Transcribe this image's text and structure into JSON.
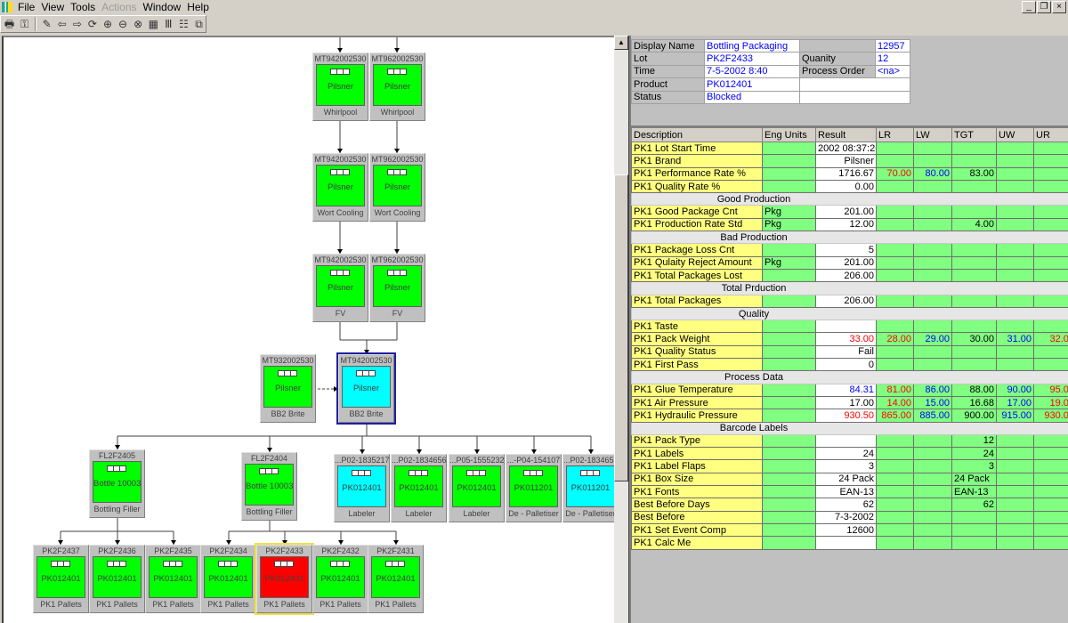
{
  "menubar": {
    "items": [
      {
        "label": "File",
        "enabled": true
      },
      {
        "label": "View",
        "enabled": true
      },
      {
        "label": "Tools",
        "enabled": true
      },
      {
        "label": "Actions",
        "enabled": false
      },
      {
        "label": "Window",
        "enabled": true
      },
      {
        "label": "Help",
        "enabled": true
      }
    ],
    "window_buttons": [
      "_",
      "❐",
      "×"
    ]
  },
  "toolbar": {
    "icons": [
      "print-icon",
      "properties-icon",
      "|",
      "edit-pencil-icon",
      "back-arrow-icon",
      "forward-arrow-icon",
      "refresh-icon",
      "zoom-in-icon",
      "zoom-out-icon",
      "zoom-reset-icon",
      "fit-icon",
      "columns-icon",
      "grid-icon",
      "genealogy-icon"
    ],
    "glyphs": [
      "🖶",
      "⚿",
      "",
      "✎",
      "⇦",
      "⇨",
      "⟳",
      "⊕",
      "⊖",
      "⊗",
      "▦",
      "Ⅲ",
      "☷",
      "⧉"
    ]
  },
  "diagram": {
    "colors": {
      "green": "#00ff00",
      "cyan": "#00ffff",
      "red": "#ff0000"
    },
    "nodes": [
      {
        "id": "MT942002530",
        "label": "Pilsner",
        "unit": "Whirlpool",
        "color": "green"
      },
      {
        "id": "MT962002530",
        "label": "Pilsner",
        "unit": "Whirlpool",
        "color": "green"
      },
      {
        "id": "MT942002530",
        "label": "Pilsner",
        "unit": "Wort Cooling",
        "color": "green"
      },
      {
        "id": "MT962002530",
        "label": "Pilsner",
        "unit": "Wort Cooling",
        "color": "green"
      },
      {
        "id": "MT942002530",
        "label": "Pilsner",
        "unit": "FV",
        "color": "green"
      },
      {
        "id": "MT962002530",
        "label": "Pilsner",
        "unit": "FV",
        "color": "green"
      },
      {
        "id": "MT932002530",
        "label": "Pilsner",
        "unit": "BB2 Brite",
        "color": "green"
      },
      {
        "id": "MT942002530",
        "label": "Pilsner",
        "unit": "BB2 Brite",
        "color": "cyan",
        "selected": "blue"
      },
      {
        "id": "FL2F2405",
        "label": "Bottle 10003",
        "unit": "Bottling Filler",
        "color": "green"
      },
      {
        "id": "FL2F2404",
        "label": "Bottle 10003",
        "unit": "Bottling Filler",
        "color": "green"
      },
      {
        "id": "...P02-1835217",
        "label": "PK012401",
        "unit": "Labeler",
        "color": "cyan"
      },
      {
        "id": "...P02-1834656",
        "label": "PK012401",
        "unit": "Labeler",
        "color": "green"
      },
      {
        "id": "...P05-1555232",
        "label": "PK012401",
        "unit": "Labeler",
        "color": "green"
      },
      {
        "id": "...-P04-154107",
        "label": "PK011201",
        "unit": "De - Palletiser",
        "color": "green"
      },
      {
        "id": "...P02-1834656",
        "label": "PK011201",
        "unit": "De - Palletiser",
        "color": "cyan"
      },
      {
        "id": "PK2F2437",
        "label": "PK012401",
        "unit": "PK1 Pallets",
        "color": "green"
      },
      {
        "id": "PK2F2436",
        "label": "PK012401",
        "unit": "PK1 Pallets",
        "color": "green"
      },
      {
        "id": "PK2F2435",
        "label": "PK012401",
        "unit": "PK1 Pallets",
        "color": "green"
      },
      {
        "id": "PK2F2434",
        "label": "PK012401",
        "unit": "PK1 Pallets",
        "color": "green"
      },
      {
        "id": "PK2F2433",
        "label": "PK012401",
        "unit": "PK1 Pallets",
        "color": "red",
        "selected": "yellow"
      },
      {
        "id": "PK2F2432",
        "label": "PK012401",
        "unit": "PK1 Pallets",
        "color": "green"
      },
      {
        "id": "PK2F2431",
        "label": "PK012401",
        "unit": "PK1 Pallets",
        "color": "green"
      }
    ]
  },
  "info": {
    "display_name_label": "Display Name",
    "display_name": "Bottling Packaging",
    "event_id": "12957",
    "lot_label": "Lot",
    "lot": "PK2F2433",
    "quantity_label": "Quanity",
    "quantity": "12",
    "time_label": "Time",
    "time": "7-5-2002 8:40",
    "process_order_label": "Process Order",
    "process_order": "<na>",
    "product_label": "Product",
    "product": "PK012401",
    "status_label": "Status",
    "status": "Blocked"
  },
  "grid": {
    "columns": [
      "Description",
      "Eng Units",
      "Result",
      "LR",
      "LW",
      "TGT",
      "UW",
      "UR"
    ],
    "text_colors": {
      "red": "#ff0000",
      "blue": "#0000ff",
      "black": "#000000"
    },
    "rows": [
      {
        "desc": "PK1 Lot Start Time",
        "units": "",
        "result": "2002 08:37:26",
        "lr": "",
        "lw": "",
        "tgt": "",
        "uw": "",
        "ur": ""
      },
      {
        "desc": "PK1 Brand",
        "units": "",
        "result": "Pilsner",
        "lr": "",
        "lw": "",
        "tgt": "",
        "uw": "",
        "ur": ""
      },
      {
        "desc": "PK1 Performance Rate %",
        "units": "",
        "result": "1716.67",
        "lr": "70.00",
        "lw": "80.00",
        "tgt": "83.00",
        "uw": "",
        "ur": ""
      },
      {
        "desc": "PK1 Quality Rate %",
        "units": "",
        "result": "0.00",
        "lr": "",
        "lw": "",
        "tgt": "",
        "uw": "",
        "ur": ""
      },
      {
        "section": "Good Production"
      },
      {
        "desc": "PK1 Good Package Cnt",
        "units": "Pkg",
        "result": "201.00",
        "lr": "",
        "lw": "",
        "tgt": "",
        "uw": "",
        "ur": ""
      },
      {
        "desc": "PK1 Production Rate Std",
        "units": "Pkg",
        "result": "12.00",
        "lr": "",
        "lw": "",
        "tgt": "4.00",
        "uw": "",
        "ur": ""
      },
      {
        "section": "Bad Production"
      },
      {
        "desc": "PK1 Package Loss Cnt",
        "units": "",
        "result": "5",
        "lr": "",
        "lw": "",
        "tgt": "",
        "uw": "",
        "ur": ""
      },
      {
        "desc": "PK1 Qulaity Reject Amount",
        "units": "Pkg",
        "result": "201.00",
        "lr": "",
        "lw": "",
        "tgt": "",
        "uw": "",
        "ur": ""
      },
      {
        "desc": "PK1 Total Packages Lost",
        "units": "",
        "result": "206.00",
        "lr": "",
        "lw": "",
        "tgt": "",
        "uw": "",
        "ur": ""
      },
      {
        "section": "Total Prduction"
      },
      {
        "desc": "PK1 Total Packages",
        "units": "",
        "result": "206.00",
        "lr": "",
        "lw": "",
        "tgt": "",
        "uw": "",
        "ur": ""
      },
      {
        "section": "Quality"
      },
      {
        "desc": "PK1 Taste",
        "units": "",
        "result": "",
        "lr": "",
        "lw": "",
        "tgt": "",
        "uw": "",
        "ur": ""
      },
      {
        "desc": "PK1 Pack Weight",
        "units": "",
        "result": "33.00",
        "result_color": "red",
        "lr": "28.00",
        "lw": "29.00",
        "tgt": "30.00",
        "uw": "31.00",
        "ur": "32.00"
      },
      {
        "desc": "PK1 Quality Status",
        "units": "",
        "result": "Fail",
        "lr": "",
        "lw": "",
        "tgt": "",
        "uw": "",
        "ur": ""
      },
      {
        "desc": "PK1 First Pass",
        "units": "",
        "result": "0",
        "lr": "",
        "lw": "",
        "tgt": "",
        "uw": "",
        "ur": ""
      },
      {
        "section": "Process Data"
      },
      {
        "desc": "PK1 Glue Temperature",
        "units": "",
        "result": "84.31",
        "result_color": "blue",
        "lr": "81.00",
        "lw": "86.00",
        "tgt": "88.00",
        "uw": "90.00",
        "ur": "95.00"
      },
      {
        "desc": "PK1 Air Pressure",
        "units": "",
        "result": "17.00",
        "lr": "14.00",
        "lw": "15.00",
        "tgt": "16.68",
        "uw": "17.00",
        "ur": "19.00"
      },
      {
        "desc": "PK1 Hydraulic Pressure",
        "units": "",
        "result": "930.50",
        "result_color": "red",
        "lr": "865.00",
        "lw": "885.00",
        "tgt": "900.00",
        "uw": "915.00",
        "ur": "930.00"
      },
      {
        "section": "Barcode Labels"
      },
      {
        "desc": "PK1 Pack Type",
        "units": "",
        "result": "",
        "lr": "",
        "lw": "",
        "tgt": "12",
        "uw": "",
        "ur": ""
      },
      {
        "desc": "PK1 Labels",
        "units": "",
        "result": "24",
        "lr": "",
        "lw": "",
        "tgt": "24",
        "uw": "",
        "ur": ""
      },
      {
        "desc": "PK1 Label Flaps",
        "units": "",
        "result": "3",
        "lr": "",
        "lw": "",
        "tgt": "3",
        "uw": "",
        "ur": ""
      },
      {
        "desc": "PK1 Box Size",
        "units": "",
        "result": "24 Pack",
        "lr": "",
        "lw": "",
        "tgt": "24 Pack",
        "tgt_align": "left",
        "uw": "",
        "ur": ""
      },
      {
        "desc": "PK1 Fonts",
        "units": "",
        "result": "EAN-13",
        "lr": "",
        "lw": "",
        "tgt": "EAN-13",
        "tgt_align": "left",
        "uw": "",
        "ur": ""
      },
      {
        "desc": "Best Before Days",
        "units": "",
        "result": "62",
        "lr": "",
        "lw": "",
        "tgt": "62",
        "uw": "",
        "ur": ""
      },
      {
        "desc": "Best Before",
        "units": "",
        "result": "7-3-2002",
        "lr": "",
        "lw": "",
        "tgt": "",
        "uw": "",
        "ur": ""
      },
      {
        "desc": "PK1 Set Event Comp",
        "units": "",
        "result": "12600",
        "lr": "",
        "lw": "",
        "tgt": "",
        "uw": "",
        "ur": ""
      },
      {
        "desc": "PK1 Calc Me",
        "units": "",
        "result": "",
        "lr": "",
        "lw": "",
        "tgt": "",
        "uw": "",
        "ur": ""
      }
    ]
  }
}
